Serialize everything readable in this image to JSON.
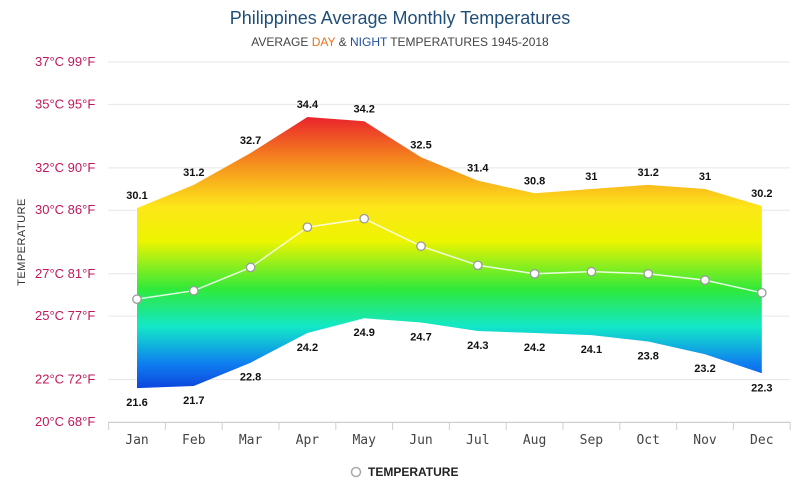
{
  "chart_data": {
    "type": "area",
    "title": "Philippines Average Monthly Temperatures",
    "subtitle": {
      "prefix": "AVERAGE ",
      "day": "DAY",
      "amp": " & ",
      "night": "NIGHT",
      "suffix": " TEMPERATURES 1945-2018"
    },
    "ylabel": "TEMPERATURE",
    "categories": [
      "Jan",
      "Feb",
      "Mar",
      "Apr",
      "May",
      "Jun",
      "Jul",
      "Aug",
      "Sep",
      "Oct",
      "Nov",
      "Dec"
    ],
    "y_ticks": [
      {
        "value": 20,
        "label": "20°C 68°F"
      },
      {
        "value": 22,
        "label": "22°C 72°F"
      },
      {
        "value": 25,
        "label": "25°C 77°F"
      },
      {
        "value": 27,
        "label": "27°C 81°F"
      },
      {
        "value": 30,
        "label": "30°C 86°F"
      },
      {
        "value": 32,
        "label": "32°C 90°F"
      },
      {
        "value": 35,
        "label": "35°C 95°F"
      },
      {
        "value": 37,
        "label": "37°C 99°F"
      }
    ],
    "ylim": [
      20,
      37
    ],
    "series": [
      {
        "name": "Day",
        "values": [
          30.1,
          31.2,
          32.7,
          34.4,
          34.2,
          32.5,
          31.4,
          30.8,
          31,
          31.2,
          31,
          30.2
        ]
      },
      {
        "name": "Night",
        "values": [
          21.6,
          21.7,
          22.8,
          24.2,
          24.9,
          24.7,
          24.3,
          24.2,
          24.1,
          23.8,
          23.2,
          22.3
        ]
      },
      {
        "name": "TEMPERATURE",
        "values": [
          25.8,
          26.2,
          27.3,
          29.2,
          29.6,
          28.3,
          27.4,
          27.0,
          27.1,
          27.0,
          26.7,
          26.1
        ]
      }
    ],
    "legend": {
      "label": "TEMPERATURE",
      "position": "bottom-center"
    },
    "colors": {
      "title": "#1f4e79",
      "day": "#e6731b",
      "night": "#1f4e9c",
      "ytick": "#c2185b",
      "grid": "#e6e6e6",
      "gradient": [
        "#e8182e",
        "#f5891e",
        "#fde61a",
        "#f2f200",
        "#2fe93a",
        "#13e8d8",
        "#0f5ef0",
        "#0c2fd6"
      ]
    }
  }
}
